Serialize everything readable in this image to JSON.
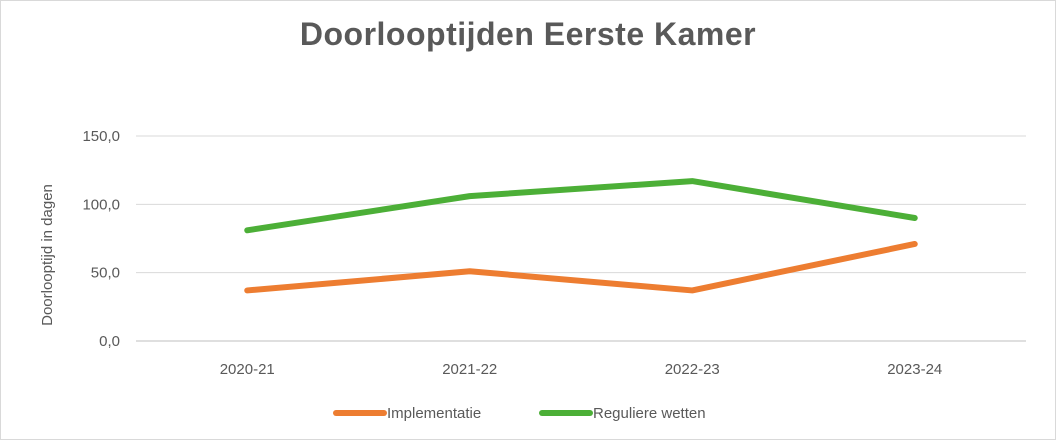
{
  "chart_data": {
    "type": "line",
    "title": "Doorlooptijden Eerste Kamer",
    "ylabel": "Doorlooptijd in dagen",
    "xlabel": "",
    "categories": [
      "2020-21",
      "2021-22",
      "2022-23",
      "2023-24"
    ],
    "ytick_labels": [
      "0,0",
      "50,0",
      "100,0",
      "150,0"
    ],
    "yticks": [
      0,
      50,
      100,
      150
    ],
    "ylim": [
      0,
      150
    ],
    "grid": true,
    "legend": "bottom",
    "series": [
      {
        "name": "Implementatie",
        "color": "#ed7d31",
        "values": [
          37,
          51,
          37,
          71
        ]
      },
      {
        "name": "Reguliere wetten",
        "color": "#4caf37",
        "values": [
          81,
          106,
          117,
          90
        ]
      }
    ]
  }
}
